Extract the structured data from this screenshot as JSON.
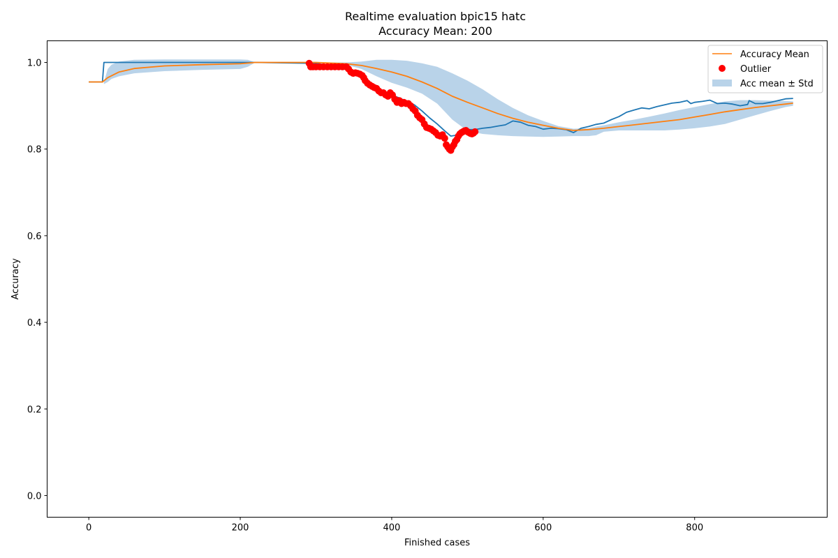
{
  "chart_data": {
    "type": "line",
    "title": "Realtime evaluation bpic15 hatc",
    "subtitle": "Accuracy Mean: 200",
    "xlabel": "Finished cases",
    "ylabel": "Accuracy",
    "xlim": [
      -55,
      975
    ],
    "ylim": [
      -0.05,
      1.05
    ],
    "xticks": [
      0,
      200,
      400,
      600,
      800
    ],
    "yticks": [
      0.0,
      0.2,
      0.4,
      0.6,
      0.8,
      1.0
    ],
    "grid": false,
    "legend_position": "top-right",
    "colors": {
      "accuracy": "#1f77b4",
      "mean": "#ff7f0e",
      "outlier": "#ff0000",
      "band": "#b9d3e9"
    },
    "legend": [
      {
        "label": "Accuracy Mean",
        "kind": "line",
        "color": "#ff7f0e"
      },
      {
        "label": "Outlier",
        "kind": "marker",
        "color": "#ff0000"
      },
      {
        "label": "Acc mean ± Std",
        "kind": "patch",
        "color": "#b9d3e9"
      }
    ],
    "series": [
      {
        "kind": "line",
        "color": "#1f77b4",
        "x": [
          0,
          17,
          18,
          20,
          100,
          200,
          220,
          300,
          345,
          352,
          360,
          365,
          370,
          380,
          390,
          400,
          410,
          420,
          430,
          440,
          450,
          460,
          470,
          478,
          485,
          490,
          495,
          500,
          510,
          520,
          530,
          540,
          550,
          560,
          570,
          580,
          590,
          600,
          610,
          620,
          630,
          640,
          650,
          660,
          670,
          680,
          690,
          700,
          710,
          720,
          730,
          740,
          750,
          760,
          770,
          780,
          790,
          795,
          800,
          810,
          820,
          830,
          840,
          850,
          860,
          870,
          872,
          880,
          890,
          900,
          910,
          920,
          930
        ],
        "y": [
          0.955,
          0.955,
          0.955,
          1.0,
          1.0,
          1.0,
          1.0,
          0.998,
          0.985,
          0.978,
          0.975,
          0.968,
          0.955,
          0.942,
          0.932,
          0.925,
          0.918,
          0.91,
          0.902,
          0.888,
          0.872,
          0.858,
          0.842,
          0.83,
          0.832,
          0.838,
          0.842,
          0.845,
          0.845,
          0.848,
          0.85,
          0.853,
          0.856,
          0.865,
          0.862,
          0.855,
          0.852,
          0.846,
          0.848,
          0.847,
          0.845,
          0.838,
          0.848,
          0.852,
          0.857,
          0.86,
          0.868,
          0.875,
          0.885,
          0.89,
          0.895,
          0.893,
          0.898,
          0.902,
          0.906,
          0.908,
          0.912,
          0.905,
          0.908,
          0.91,
          0.913,
          0.905,
          0.906,
          0.904,
          0.9,
          0.903,
          0.912,
          0.905,
          0.905,
          0.908,
          0.912,
          0.916,
          0.917
        ]
      },
      {
        "name": "Accuracy Mean",
        "kind": "line",
        "color": "#ff7f0e",
        "x": [
          0,
          18,
          25,
          40,
          60,
          100,
          150,
          200,
          220,
          300,
          340,
          360,
          380,
          400,
          420,
          440,
          460,
          480,
          500,
          520,
          540,
          560,
          580,
          600,
          620,
          640,
          660,
          680,
          700,
          720,
          740,
          760,
          780,
          800,
          820,
          840,
          860,
          880,
          900,
          920,
          930
        ],
        "y": [
          0.955,
          0.955,
          0.965,
          0.978,
          0.986,
          0.992,
          0.995,
          0.997,
          1.0,
          1.0,
          0.997,
          0.993,
          0.986,
          0.978,
          0.968,
          0.955,
          0.94,
          0.922,
          0.908,
          0.895,
          0.882,
          0.871,
          0.862,
          0.855,
          0.848,
          0.843,
          0.845,
          0.848,
          0.852,
          0.856,
          0.86,
          0.864,
          0.868,
          0.874,
          0.88,
          0.886,
          0.891,
          0.896,
          0.9,
          0.904,
          0.906
        ]
      },
      {
        "name": "Acc mean ± Std",
        "kind": "band",
        "color": "#b9d3e9",
        "x": [
          20,
          25,
          30,
          40,
          60,
          100,
          150,
          200,
          210,
          220,
          230,
          300,
          340,
          360,
          380,
          400,
          420,
          440,
          460,
          480,
          500,
          520,
          540,
          560,
          580,
          600,
          620,
          640,
          660,
          670,
          680,
          700,
          720,
          740,
          760,
          780,
          800,
          820,
          840,
          860,
          880,
          900,
          920,
          930
        ],
        "upper": [
          0.955,
          0.985,
          0.995,
          1.002,
          1.006,
          1.007,
          1.007,
          1.007,
          1.006,
          1.0,
          1.0,
          1.0,
          1.0,
          1.002,
          1.006,
          1.006,
          1.004,
          0.998,
          0.99,
          0.975,
          0.958,
          0.938,
          0.915,
          0.895,
          0.878,
          0.865,
          0.853,
          0.847,
          0.848,
          0.852,
          0.855,
          0.862,
          0.868,
          0.875,
          0.882,
          0.89,
          0.897,
          0.904,
          0.91,
          0.913,
          0.913,
          0.912,
          0.911,
          0.91
        ],
        "lower": [
          0.95,
          0.955,
          0.962,
          0.968,
          0.975,
          0.98,
          0.983,
          0.985,
          0.99,
          1.0,
          1.0,
          1.0,
          0.995,
          0.985,
          0.968,
          0.953,
          0.942,
          0.928,
          0.905,
          0.868,
          0.842,
          0.835,
          0.832,
          0.83,
          0.829,
          0.828,
          0.829,
          0.83,
          0.83,
          0.832,
          0.84,
          0.843,
          0.843,
          0.843,
          0.843,
          0.845,
          0.848,
          0.852,
          0.858,
          0.868,
          0.878,
          0.888,
          0.897,
          0.9
        ]
      },
      {
        "name": "Outlier",
        "kind": "scatter",
        "color": "#ff0000",
        "x": [
          291,
          293,
          296,
          300,
          305,
          310,
          315,
          320,
          325,
          330,
          335,
          340,
          343,
          346,
          349,
          352,
          355,
          358,
          361,
          363,
          365,
          368,
          371,
          374,
          377,
          380,
          383,
          386,
          389,
          392,
          395,
          398,
          401,
          404,
          407,
          410,
          413,
          416,
          419,
          422,
          425,
          428,
          431,
          434,
          437,
          440,
          443,
          446,
          449,
          452,
          455,
          458,
          461,
          464,
          467,
          470,
          472,
          474,
          476,
          478,
          480,
          482,
          484,
          486,
          488,
          490,
          492,
          494,
          496,
          498,
          500,
          502,
          504,
          506,
          508,
          510
        ],
        "y": [
          0.998,
          0.99,
          0.99,
          0.99,
          0.99,
          0.99,
          0.99,
          0.99,
          0.99,
          0.99,
          0.99,
          0.99,
          0.985,
          0.978,
          0.975,
          0.976,
          0.975,
          0.973,
          0.97,
          0.965,
          0.958,
          0.952,
          0.948,
          0.945,
          0.942,
          0.94,
          0.934,
          0.93,
          0.93,
          0.925,
          0.922,
          0.93,
          0.925,
          0.915,
          0.908,
          0.912,
          0.905,
          0.908,
          0.905,
          0.905,
          0.9,
          0.893,
          0.888,
          0.878,
          0.872,
          0.868,
          0.858,
          0.85,
          0.848,
          0.846,
          0.842,
          0.838,
          0.832,
          0.83,
          0.833,
          0.825,
          0.81,
          0.805,
          0.8,
          0.797,
          0.805,
          0.81,
          0.818,
          0.822,
          0.83,
          0.835,
          0.838,
          0.84,
          0.842,
          0.843,
          0.84,
          0.838,
          0.836,
          0.835,
          0.837,
          0.84
        ]
      }
    ]
  }
}
